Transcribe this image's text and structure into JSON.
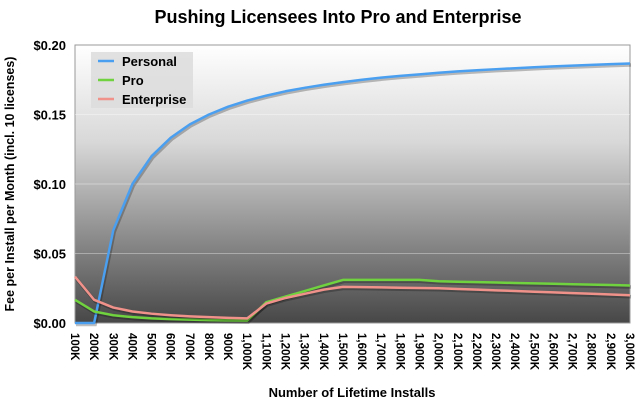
{
  "chart_data": {
    "type": "line",
    "title": "Pushing Licensees Into Pro and Enterprise",
    "xlabel": "Number of Lifetime Installs",
    "ylabel": "Fee per Install per Month (incl. 10 licenses)",
    "ylim": [
      0,
      0.2
    ],
    "yticks": [
      "$0.00",
      "$0.05",
      "$0.10",
      "$0.15",
      "$0.20"
    ],
    "ytick_values": [
      0,
      0.05,
      0.1,
      0.15,
      0.2
    ],
    "grid": true,
    "legend": "top-left",
    "categories": [
      "100K",
      "200K",
      "300K",
      "400K",
      "500K",
      "600K",
      "700K",
      "800K",
      "900K",
      "1,000K",
      "1,100K",
      "1,200K",
      "1,300K",
      "1,400K",
      "1,500K",
      "1,600K",
      "1,700K",
      "1,800K",
      "1,900K",
      "2,000K",
      "2,100K",
      "2,200K",
      "2,300K",
      "2,400K",
      "2,500K",
      "2,600K",
      "2,700K",
      "2,800K",
      "2,900K",
      "3,000K"
    ],
    "series": [
      {
        "name": "Personal",
        "color": "#4a9ff0",
        "values": [
          0,
          0,
          0.0667,
          0.1,
          0.12,
          0.1333,
          0.1429,
          0.15,
          0.1556,
          0.16,
          0.1636,
          0.1667,
          0.1692,
          0.1714,
          0.1733,
          0.175,
          0.1765,
          0.1778,
          0.1789,
          0.18,
          0.181,
          0.1818,
          0.1826,
          0.1833,
          0.184,
          0.1846,
          0.1852,
          0.1857,
          0.1862,
          0.1867
        ]
      },
      {
        "name": "Pro",
        "color": "#6fd23e",
        "values": [
          0.0167,
          0.0083,
          0.0056,
          0.0042,
          0.0033,
          0.0028,
          0.0024,
          0.0021,
          0.0019,
          0.0017,
          0.015,
          0.019,
          0.023,
          0.027,
          0.031,
          0.031,
          0.031,
          0.031,
          0.031,
          0.03,
          0.0297,
          0.0294,
          0.0291,
          0.0288,
          0.0285,
          0.0282,
          0.0279,
          0.0276,
          0.0273,
          0.027
        ]
      },
      {
        "name": "Enterprise",
        "color": "#f0918a",
        "values": [
          0.0333,
          0.0167,
          0.0111,
          0.0083,
          0.0067,
          0.0056,
          0.0048,
          0.0042,
          0.0037,
          0.0033,
          0.014,
          0.018,
          0.021,
          0.024,
          0.026,
          0.0258,
          0.0256,
          0.0254,
          0.0252,
          0.025,
          0.0245,
          0.024,
          0.0235,
          0.023,
          0.0225,
          0.022,
          0.0215,
          0.021,
          0.0205,
          0.02
        ]
      }
    ]
  }
}
